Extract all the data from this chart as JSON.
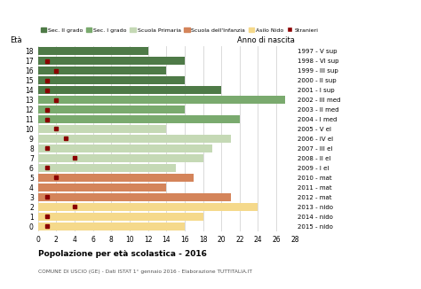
{
  "ages": [
    18,
    17,
    16,
    15,
    14,
    13,
    12,
    11,
    10,
    9,
    8,
    7,
    6,
    5,
    4,
    3,
    2,
    1,
    0
  ],
  "anni": [
    "1997 - V sup",
    "1998 - VI sup",
    "1999 - III sup",
    "2000 - II sup",
    "2001 - I sup",
    "2002 - III med",
    "2003 - II med",
    "2004 - I med",
    "2005 - V el",
    "2006 - IV el",
    "2007 - III el",
    "2008 - II el",
    "2009 - I el",
    "2010 - mat",
    "2011 - mat",
    "2012 - mat",
    "2013 - nido",
    "2014 - nido",
    "2015 - nido"
  ],
  "bar_values": [
    12,
    16,
    14,
    16,
    20,
    27,
    16,
    22,
    14,
    21,
    19,
    18,
    15,
    17,
    14,
    21,
    24,
    18,
    16
  ],
  "stranieri": [
    0,
    1,
    2,
    1,
    1,
    2,
    1,
    1,
    2,
    3,
    1,
    4,
    1,
    2,
    0,
    1,
    4,
    1,
    1
  ],
  "categories": {
    "Sec. II grado": {
      "ages": [
        14,
        15,
        16,
        17,
        18
      ],
      "color": "#4e7a47"
    },
    "Sec. I grado": {
      "ages": [
        11,
        12,
        13
      ],
      "color": "#7aaa6e"
    },
    "Scuola Primaria": {
      "ages": [
        6,
        7,
        8,
        9,
        10
      ],
      "color": "#c5d9b5"
    },
    "Scuola dell'Infanzia": {
      "ages": [
        3,
        4,
        5
      ],
      "color": "#d4845a"
    },
    "Asilo Nido": {
      "ages": [
        0,
        1,
        2
      ],
      "color": "#f5d98b"
    }
  },
  "stranieri_color": "#8b0000",
  "grid_color": "#cccccc",
  "xlim": [
    0,
    28
  ],
  "xticks": [
    0,
    2,
    4,
    6,
    8,
    10,
    12,
    14,
    16,
    18,
    20,
    22,
    24,
    26,
    28
  ],
  "title": "Popolazione per età scolastica - 2016",
  "subtitle": "COMUNE DI USCIO (GE) - Dati ISTAT 1° gennaio 2016 - Elaborazione TUTTITALIA.IT",
  "ylabel_eta": "Età",
  "ylabel_anno": "Anno di nascita",
  "legend_items": [
    {
      "label": "Sec. II grado",
      "color": "#4e7a47"
    },
    {
      "label": "Sec. I grado",
      "color": "#7aaa6e"
    },
    {
      "label": "Scuola Primaria",
      "color": "#c5d9b5"
    },
    {
      "label": "Scuola dell'Infanzia",
      "color": "#d4845a"
    },
    {
      "label": "Asilo Nido",
      "color": "#f5d98b"
    },
    {
      "label": "Stranieri",
      "color": "#8b0000"
    }
  ]
}
